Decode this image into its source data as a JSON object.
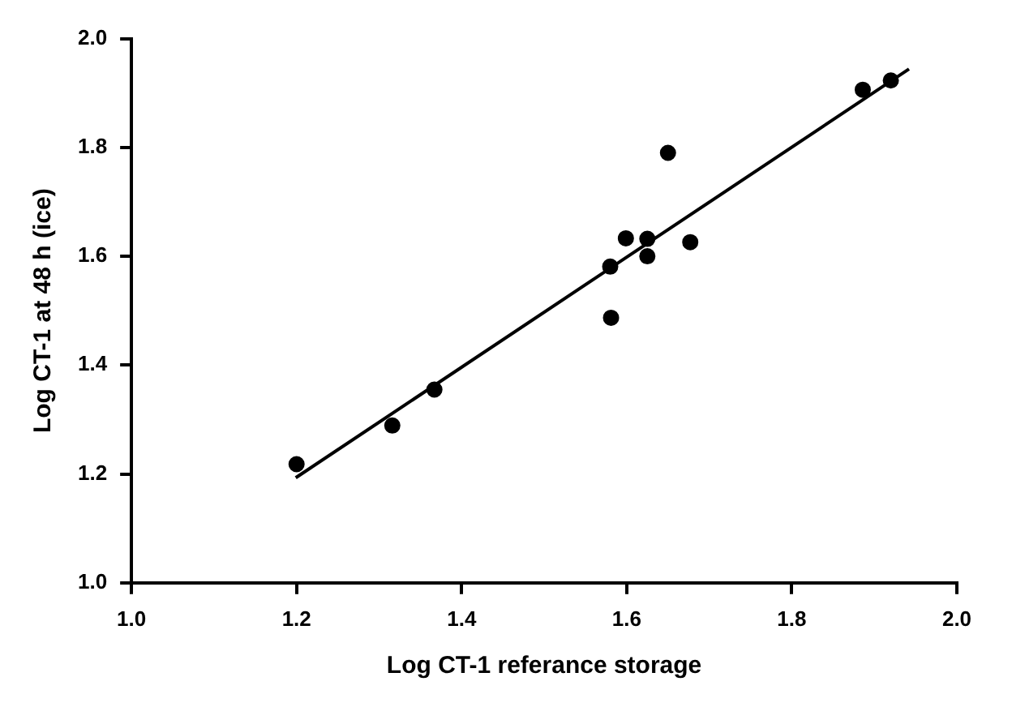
{
  "chart_data": {
    "type": "scatter",
    "xlabel": "Log CT-1 referance storage",
    "ylabel": "Log CT-1 at 48 h (ice)",
    "xlim": [
      1.0,
      2.0
    ],
    "xticks": [
      {
        "value": 1.0,
        "label": "1.0"
      },
      1.2,
      1.4,
      1.6,
      1.8,
      {
        "value": 2.0,
        "label": "2.0"
      }
    ],
    "ylim": [
      1.0,
      2.0
    ],
    "yticks": [
      {
        "value": 1.0,
        "label": "1.0"
      },
      1.2,
      1.4,
      1.6,
      1.8,
      {
        "value": 2.0,
        "label": "2.0"
      }
    ],
    "grid": false,
    "legend": false,
    "marker": "circle",
    "series": [
      {
        "color": "#000000",
        "x": [
          1.2,
          1.316,
          1.367,
          1.58,
          1.581,
          1.599,
          1.625,
          1.625,
          1.65,
          1.677,
          1.886,
          1.92
        ],
        "values": [
          1.218,
          1.289,
          1.355,
          1.581,
          1.487,
          1.633,
          1.632,
          1.6,
          1.79,
          1.626,
          1.906,
          1.923
        ]
      },
      {
        "type": "line",
        "color": "#000000",
        "marker": "none",
        "line_style": "solid",
        "x": [
          1.199,
          1.942
        ],
        "values": [
          1.193,
          1.944
        ]
      }
    ]
  }
}
